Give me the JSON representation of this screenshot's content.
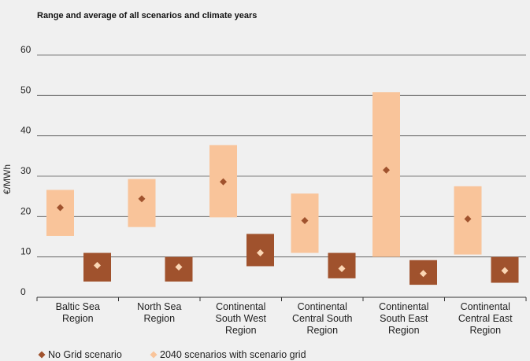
{
  "chart_data": {
    "type": "range-bar",
    "title": "Range and average of all scenarios and climate years",
    "ylabel": "€/MWh",
    "ylim": [
      0,
      60
    ],
    "yticks": [
      0,
      10,
      20,
      30,
      40,
      50,
      60
    ],
    "grid": true,
    "categories": [
      [
        "Baltic Sea",
        "Region"
      ],
      [
        "North Sea",
        "Region"
      ],
      [
        "Continental",
        "South West",
        "Region"
      ],
      [
        "Continental",
        "Central South",
        "Region"
      ],
      [
        "Continental",
        "South East",
        "Region"
      ],
      [
        "Continental",
        "Central East",
        "Region"
      ]
    ],
    "series": [
      {
        "name": "2040 scenarios with scenario grid",
        "color": "#f9c49a",
        "marker_color": "#a0522d",
        "min": [
          15.2,
          17.4,
          19.8,
          11.0,
          10.0,
          10.6
        ],
        "max": [
          26.6,
          29.3,
          37.7,
          25.7,
          50.8,
          27.5
        ],
        "avg": [
          22.2,
          24.4,
          28.6,
          19.0,
          31.5,
          19.4
        ]
      },
      {
        "name": "No Grid scenario",
        "color": "#a0522d",
        "marker_color": "#fbd7b5",
        "min": [
          3.9,
          3.9,
          7.7,
          4.7,
          3.1,
          3.6
        ],
        "max": [
          11.0,
          10.0,
          15.7,
          11.0,
          9.2,
          10.0
        ],
        "avg": [
          7.9,
          7.5,
          11.0,
          7.1,
          5.9,
          6.6
        ]
      }
    ],
    "legend": {
      "position": "bottom-left",
      "items": [
        {
          "label": "No Grid scenario",
          "color": "#a0522d"
        },
        {
          "label": "2040 scenarios with scenario grid",
          "color": "#f9c49a"
        }
      ]
    }
  }
}
